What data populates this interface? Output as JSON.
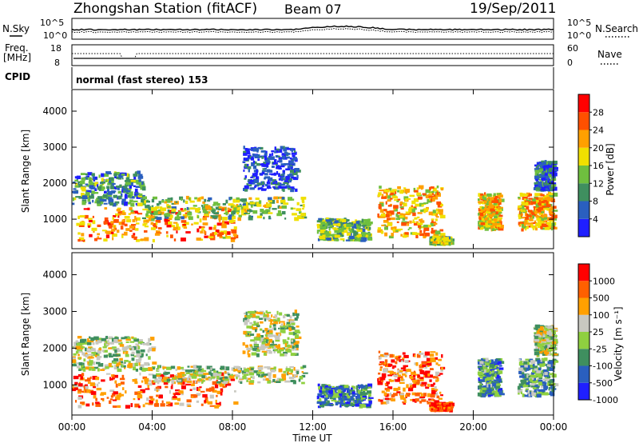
{
  "header": {
    "title": "Zhongshan Station (fitACF)",
    "beam": "Beam 07",
    "date": "19/Sep/2011"
  },
  "status_panels": {
    "nsky_label": "N.Sky",
    "nsky_ticks": [
      "10^5",
      "10^0"
    ],
    "nsearch_label": "N.Search",
    "nsearch_ticks": [
      "10^5",
      "10^0"
    ],
    "freq_label": "Freq.",
    "freq_unit": "[MHz]",
    "freq_ticks": [
      "18",
      "8"
    ],
    "nave_label": "Nave",
    "nave_ticks": [
      "60",
      "0"
    ],
    "cpid_label": "CPID",
    "cpid_text": "normal (fast stereo) 153"
  },
  "chart_data": [
    {
      "type": "heatmap",
      "name": "power",
      "ylabel": "Slant Range [km]",
      "yticks": [
        "4000",
        "3000",
        "2000",
        "1000"
      ],
      "ylim": [
        180,
        4600
      ],
      "colorbar_label": "Power [dB]",
      "colorbar_ticks": [
        "28",
        "24",
        "20",
        "16",
        "12",
        "8",
        "4"
      ],
      "colors": [
        "#1f1fff",
        "#2a5fbf",
        "#3f8f5f",
        "#6fbf3f",
        "#f0e000",
        "#ffa000",
        "#ff5000",
        "#ff0000"
      ],
      "regions": [
        {
          "t": [
            0,
            8.1
          ],
          "r": [
            400,
            1300
          ],
          "level": 0.72
        },
        {
          "t": [
            0,
            3.5
          ],
          "r": [
            1400,
            2300
          ],
          "level": 0.3
        },
        {
          "t": [
            3.5,
            11.5
          ],
          "r": [
            1000,
            1600
          ],
          "level": 0.45
        },
        {
          "t": [
            8.5,
            11.2
          ],
          "r": [
            1800,
            3000
          ],
          "level": 0.12
        },
        {
          "t": [
            12.2,
            14.8
          ],
          "r": [
            400,
            1000
          ],
          "level": 0.4
        },
        {
          "t": [
            15.2,
            18.4
          ],
          "r": [
            500,
            1900
          ],
          "level": 0.65
        },
        {
          "t": [
            17.8,
            18.8
          ],
          "r": [
            300,
            500
          ],
          "level": 0.45
        },
        {
          "t": [
            20.2,
            21.3
          ],
          "r": [
            700,
            1700
          ],
          "level": 0.6
        },
        {
          "t": [
            22.2,
            24
          ],
          "r": [
            700,
            1700
          ],
          "level": 0.65
        },
        {
          "t": [
            23.0,
            24
          ],
          "r": [
            1800,
            2600
          ],
          "level": 0.2
        }
      ]
    },
    {
      "type": "heatmap",
      "name": "velocity",
      "ylabel": "Slant Range [km]",
      "yticks": [
        "4000",
        "3000",
        "2000",
        "1000"
      ],
      "ylim": [
        180,
        4600
      ],
      "colorbar_label": "Velocity [m s⁻¹]",
      "colorbar_ticks": [
        "1000",
        "500",
        "100",
        "25",
        "-25",
        "-100",
        "-500",
        "-1000"
      ],
      "colors": [
        "#1f1fff",
        "#2a5fbf",
        "#3f8f5f",
        "#8fd040",
        "#c8c8c0",
        "#ffa000",
        "#ff6000",
        "#ff0000"
      ],
      "regions": [
        {
          "t": [
            0,
            8.1
          ],
          "r": [
            400,
            1300
          ],
          "level": 0.8
        },
        {
          "t": [
            0,
            4.0
          ],
          "r": [
            1400,
            2300
          ],
          "level": 0.5
        },
        {
          "t": [
            4.0,
            11.5
          ],
          "r": [
            1050,
            1500
          ],
          "level": 0.5
        },
        {
          "t": [
            8.5,
            11.2
          ],
          "r": [
            1800,
            3000
          ],
          "level": 0.5
        },
        {
          "t": [
            12.2,
            14.8
          ],
          "r": [
            400,
            1000
          ],
          "level": 0.25
        },
        {
          "t": [
            15.2,
            18.4
          ],
          "r": [
            500,
            1900
          ],
          "level": 0.8
        },
        {
          "t": [
            17.8,
            18.8
          ],
          "r": [
            300,
            500
          ],
          "level": 0.85
        },
        {
          "t": [
            20.2,
            21.3
          ],
          "r": [
            700,
            1700
          ],
          "level": 0.3
        },
        {
          "t": [
            22.2,
            24
          ],
          "r": [
            700,
            1700
          ],
          "level": 0.35
        },
        {
          "t": [
            23.0,
            24
          ],
          "r": [
            1800,
            2600
          ],
          "level": 0.5
        }
      ]
    }
  ],
  "time_axis": {
    "label": "Time UT",
    "ticks": [
      "00:00",
      "04:00",
      "08:00",
      "12:00",
      "16:00",
      "20:00",
      "00:00"
    ],
    "range_hours": [
      0,
      24
    ]
  }
}
